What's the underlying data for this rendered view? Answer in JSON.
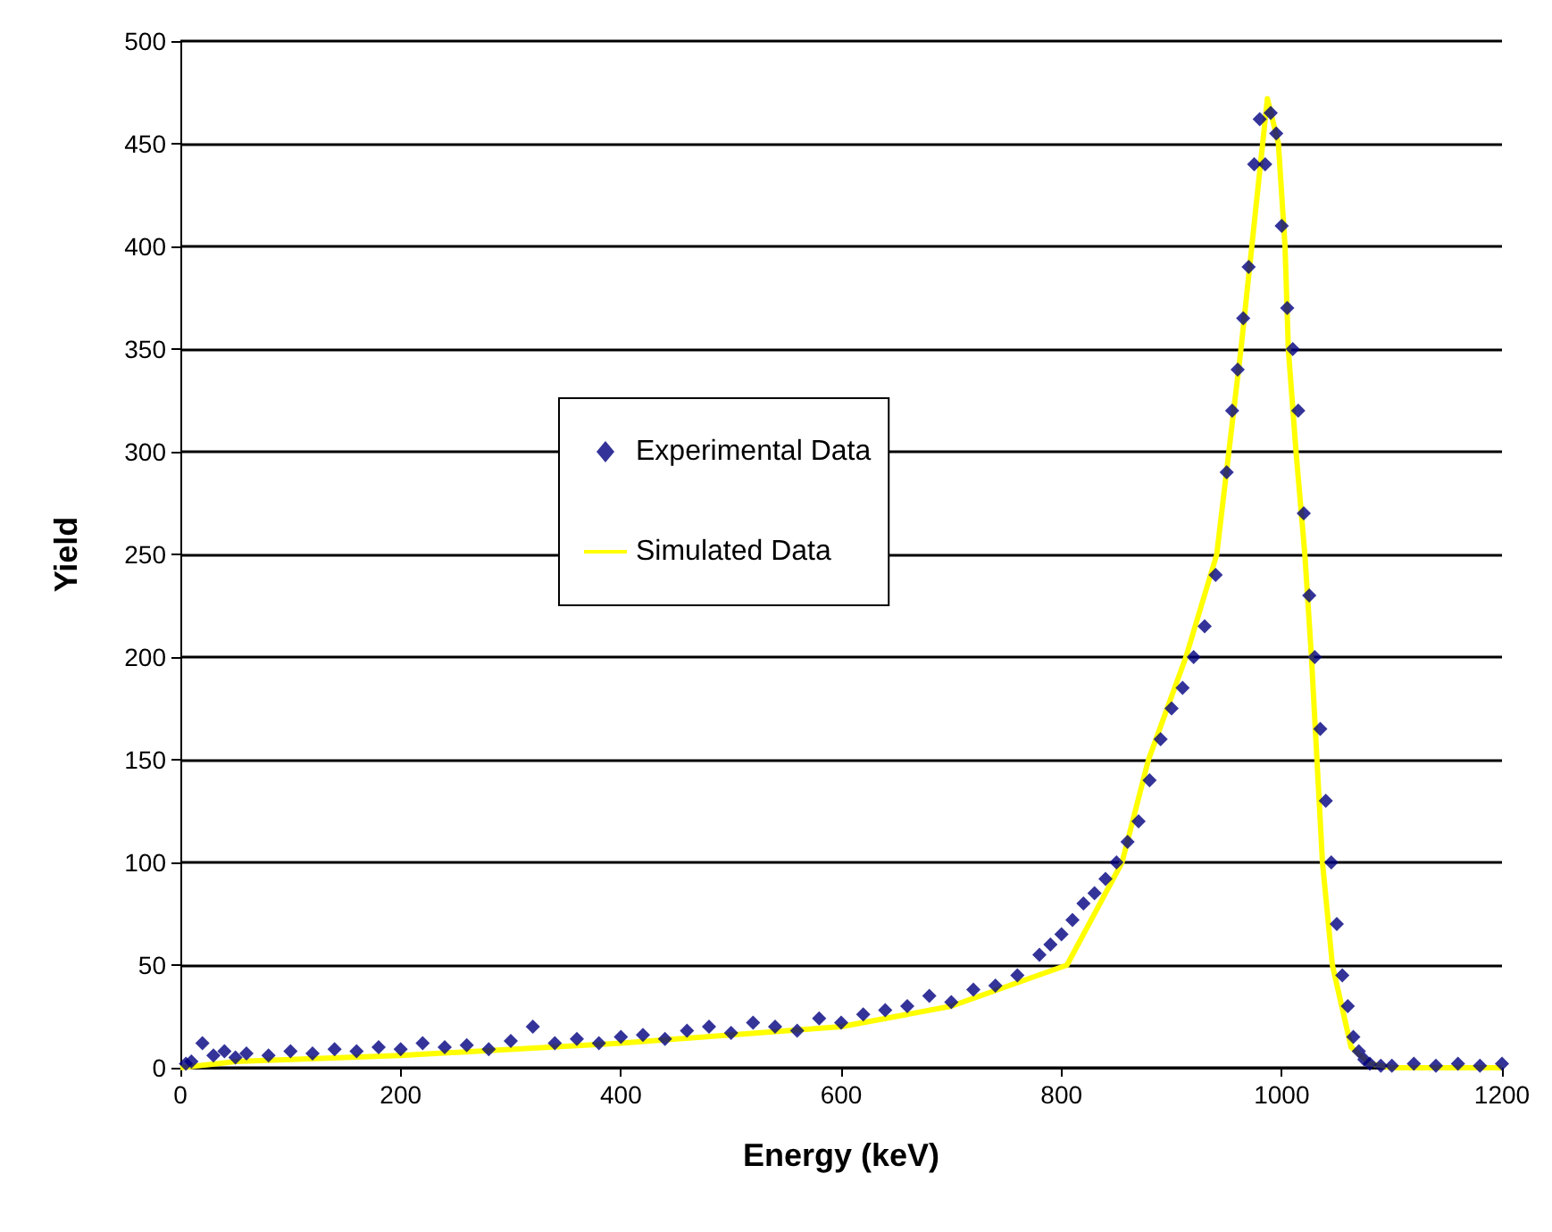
{
  "chart_data": {
    "type": "scatter",
    "xlabel": "Energy (keV)",
    "ylabel": "Yield",
    "xlim": [
      0,
      1200
    ],
    "xticks": [
      0,
      200,
      400,
      600,
      800,
      1000,
      1200
    ],
    "ylim": [
      0,
      500
    ],
    "yticks": [
      0,
      50,
      100,
      150,
      200,
      250,
      300,
      350,
      400,
      450,
      500
    ],
    "grid": "y",
    "legend": "left",
    "series": [
      {
        "name": "Experimental Data",
        "marker": "diamond",
        "color": "#000080",
        "x": [
          5,
          10,
          20,
          30,
          40,
          50,
          60,
          80,
          100,
          120,
          140,
          160,
          180,
          200,
          220,
          240,
          260,
          280,
          300,
          320,
          340,
          360,
          380,
          400,
          420,
          440,
          460,
          480,
          500,
          520,
          540,
          560,
          580,
          600,
          620,
          640,
          660,
          680,
          700,
          720,
          740,
          760,
          780,
          790,
          800,
          810,
          820,
          830,
          840,
          850,
          860,
          870,
          880,
          890,
          900,
          910,
          920,
          930,
          940,
          950,
          955,
          960,
          965,
          970,
          975,
          980,
          985,
          990,
          995,
          1000,
          1005,
          1010,
          1015,
          1020,
          1025,
          1030,
          1035,
          1040,
          1045,
          1050,
          1055,
          1060,
          1065,
          1070,
          1075,
          1080,
          1090,
          1100,
          1120,
          1140,
          1160,
          1180,
          1200
        ],
        "values": [
          2,
          3,
          12,
          6,
          8,
          5,
          7,
          6,
          8,
          7,
          9,
          8,
          10,
          9,
          12,
          10,
          11,
          9,
          13,
          20,
          12,
          14,
          12,
          15,
          16,
          14,
          18,
          20,
          17,
          22,
          20,
          18,
          24,
          22,
          26,
          28,
          30,
          35,
          32,
          38,
          40,
          45,
          55,
          60,
          65,
          72,
          80,
          85,
          92,
          100,
          110,
          120,
          140,
          160,
          175,
          185,
          200,
          215,
          240,
          290,
          320,
          340,
          365,
          390,
          440,
          462,
          440,
          465,
          455,
          410,
          370,
          350,
          320,
          270,
          230,
          200,
          165,
          130,
          100,
          70,
          45,
          30,
          15,
          8,
          4,
          2,
          1,
          1,
          2,
          1,
          2,
          1,
          2
        ]
      },
      {
        "name": "Simulated Data",
        "type": "line",
        "marker": "none",
        "line_style": "solid",
        "color": "#ffff00",
        "x": [
          0,
          50,
          200,
          400,
          600,
          700,
          805,
          855,
          879,
          913,
          941,
          963,
          987,
          997,
          1003,
          1006,
          1013,
          1021,
          1027,
          1032,
          1037,
          1046,
          1063,
          1080,
          1100,
          1200
        ],
        "values": [
          0,
          3,
          6,
          12,
          20,
          30,
          50,
          100,
          150,
          200,
          250,
          350,
          472,
          450,
          400,
          350,
          300,
          250,
          200,
          150,
          100,
          50,
          10,
          2,
          0,
          0
        ]
      }
    ]
  }
}
